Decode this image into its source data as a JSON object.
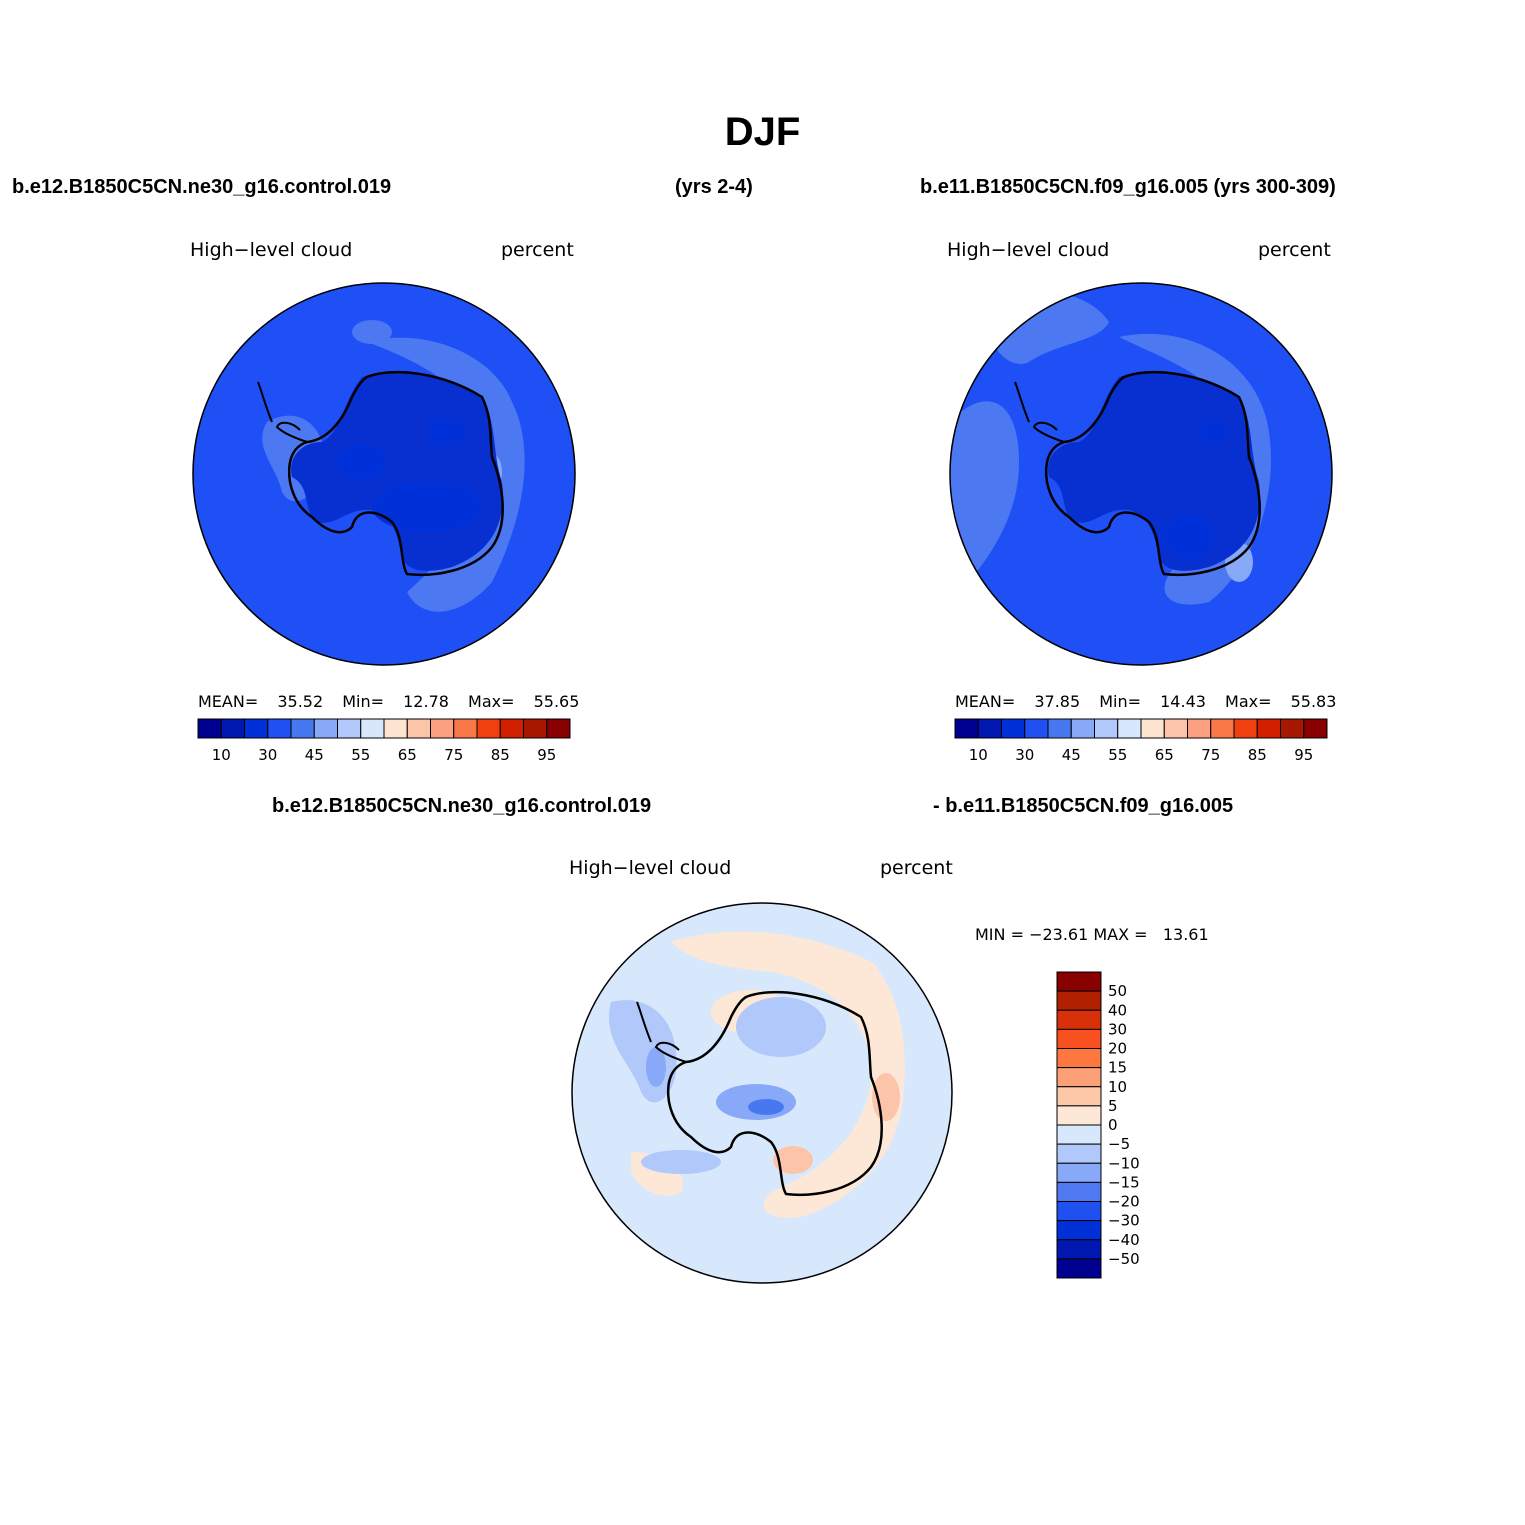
{
  "figure": {
    "title": "DJF"
  },
  "panels": [
    {
      "id": "left",
      "case_label_left": "b.e12.B1850C5CN.ne30_g16.control.019",
      "case_label_right": "(yrs 2-4)",
      "variable": "High−level cloud",
      "units": "percent",
      "stats": {
        "mean_label": "MEAN=",
        "mean": "35.52",
        "min_label": "Min=",
        "min": "12.78",
        "max_label": "Max=",
        "max": "55.65"
      }
    },
    {
      "id": "right",
      "case_label": "b.e11.B1850C5CN.f09_g16.005 (yrs 300-309)",
      "variable": "High−level cloud",
      "units": "percent",
      "stats": {
        "mean_label": "MEAN=",
        "mean": "37.85",
        "min_label": "Min=",
        "min": "14.43",
        "max_label": "Max=",
        "max": "55.83"
      }
    },
    {
      "id": "diff",
      "case_label_left": "b.e12.B1850C5CN.ne30_g16.control.019",
      "case_label_right": "- b.e11.B1850C5CN.f09_g16.005",
      "variable": "High−level cloud",
      "units": "percent",
      "stats": {
        "text": "MIN = −23.61 MAX =   13.61"
      }
    }
  ],
  "colorbar_abs": {
    "colors": [
      "#000090",
      "#0018b0",
      "#0030d8",
      "#2050f0",
      "#4878f0",
      "#88a8f8",
      "#b0c8fa",
      "#d8e8fc",
      "#fde4d0",
      "#fcc4a8",
      "#fba080",
      "#fa7848",
      "#f04010",
      "#d02000",
      "#a81800",
      "#880000"
    ],
    "tick_labels": [
      "10",
      "30",
      "45",
      "55",
      "65",
      "75",
      "85",
      "95"
    ]
  },
  "colorbar_diff": {
    "colors_top_to_bottom": [
      "#880000",
      "#b02000",
      "#d83008",
      "#f85020",
      "#fc7840",
      "#fca078",
      "#fdc8a8",
      "#fde8d8",
      "#d8e8fc",
      "#b0c8fa",
      "#88a8f8",
      "#5078f0",
      "#2050f0",
      "#0030d8",
      "#0018b0",
      "#000090"
    ],
    "tick_labels_top_to_bottom": [
      "50",
      "40",
      "30",
      "20",
      "15",
      "10",
      "5",
      "0",
      "−5",
      "−10",
      "−15",
      "−20",
      "−30",
      "−40",
      "−50"
    ]
  },
  "map_colors": {
    "base_abs": "#1e50f5",
    "land_abs": "#0830d0",
    "light_abs": "#4c78f2",
    "lighter_abs": "#88a8f8",
    "base_diff": "#d8e8fc",
    "neg_diff": "#b0c8fa",
    "neg2_diff": "#88a8f8",
    "neg3_diff": "#4878f0",
    "pos_diff": "#fde8d8",
    "pos2_diff": "#fcc4a8",
    "pos3_diff": "#f89870",
    "coast": "#000000"
  }
}
